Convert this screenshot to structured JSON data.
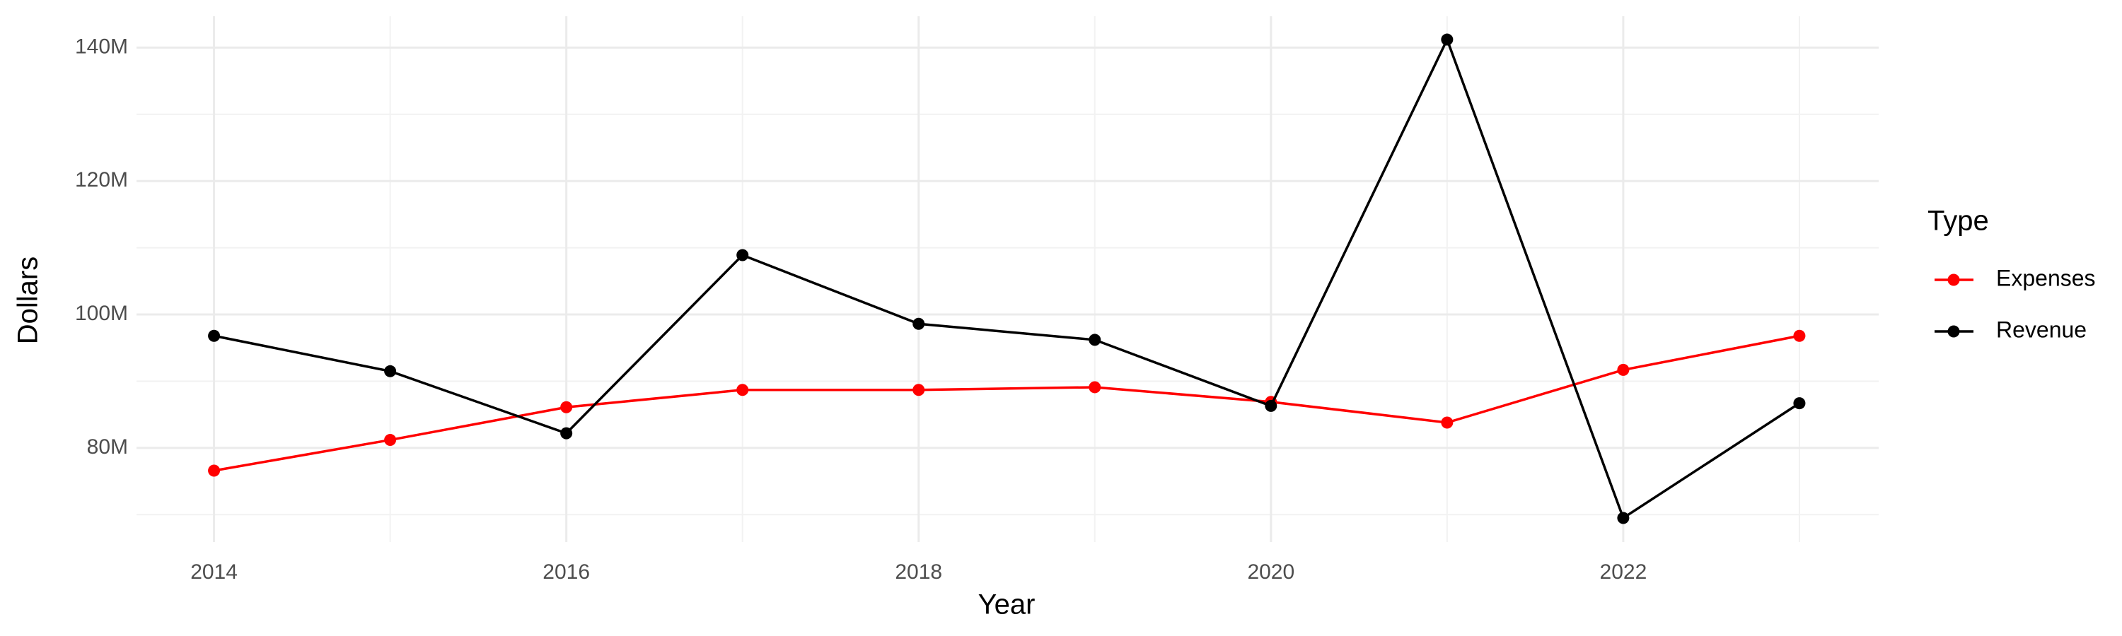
{
  "chart_data": {
    "type": "line",
    "x_label": "Year",
    "y_label": "Dollars",
    "legend_title": "Type",
    "legend_position": "right",
    "grid": true,
    "x": [
      2014,
      2015,
      2016,
      2017,
      2018,
      2019,
      2020,
      2021,
      2022,
      2023
    ],
    "series": [
      {
        "name": "Expenses",
        "color": "#ff0000",
        "values": [
          76600000,
          81200000,
          86100000,
          88700000,
          88700000,
          89100000,
          86900000,
          83800000,
          91700000,
          96800000
        ]
      },
      {
        "name": "Revenue",
        "color": "#000000",
        "values": [
          96800000,
          91500000,
          82200000,
          108900000,
          98600000,
          96200000,
          86300000,
          141200000,
          69500000,
          86700000
        ]
      }
    ],
    "xlim": [
      2013.56,
      2023.45
    ],
    "xticks": [
      2014,
      2016,
      2018,
      2020,
      2022
    ],
    "ylim": [
      65900000,
      144700000
    ],
    "yticks": [
      {
        "value": 80000000,
        "label": "80M"
      },
      {
        "value": 100000000,
        "label": "100M"
      },
      {
        "value": 120000000,
        "label": "120M"
      },
      {
        "value": 140000000,
        "label": "140M"
      }
    ]
  }
}
